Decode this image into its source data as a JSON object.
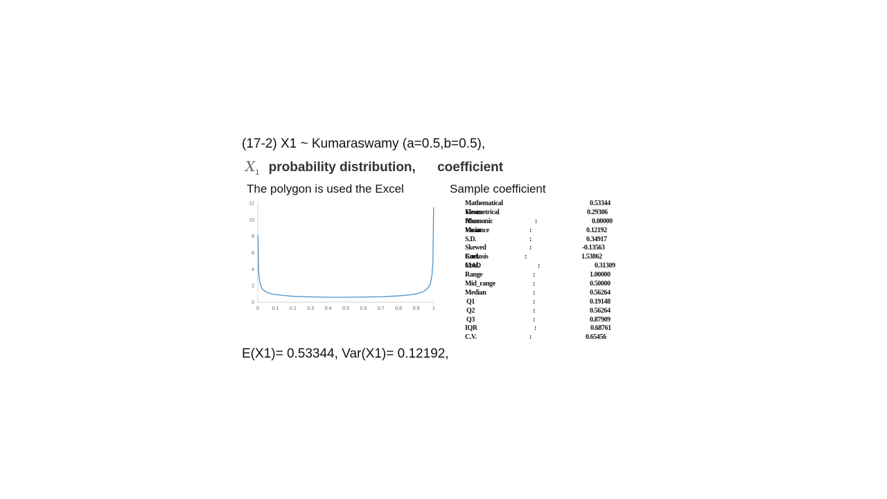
{
  "heading": "(17-2) X1 ~ Kumaraswamy (a=0.5,b=0.5),",
  "dist_line": {
    "variable": "X",
    "subscript": "1",
    "text": "probability distribution,",
    "coefficient": "coefficient"
  },
  "polygon_caption": "The polygon is used the Excel",
  "sample_caption": "Sample coefficient",
  "stats": [
    {
      "label": "Mathematical Mean:",
      "colon": "",
      "value": "0.53344"
    },
    {
      "label": "Geometrical Mean :",
      "colon": "",
      "value": "0.29306"
    },
    {
      "label": "Harmonic Mean",
      "colon": ":",
      "value": "0.00000"
    },
    {
      "label": "Variance",
      "colon": ":",
      "value": "0.12192"
    },
    {
      "label": "S.D.",
      "colon": ":",
      "value": "0.34917"
    },
    {
      "label": "Skewed Coef.",
      "colon": ":",
      "value": "-0.13563"
    },
    {
      "label": "Kurtosis Coef.",
      "colon": ":",
      "value": "1.53862"
    },
    {
      "label": "MAD",
      "colon": ":",
      "value": "0.31309"
    },
    {
      "label": "Range",
      "colon": ":",
      "value": "1.00000"
    },
    {
      "label": "Mid_range",
      "colon": ":",
      "value": "0.50000"
    },
    {
      "label": "Median",
      "colon": ":",
      "value": "0.56264"
    },
    {
      "label": "Q1",
      "colon": ":",
      "value": "0.19148"
    },
    {
      "label": "Q2",
      "colon": ":",
      "value": "0.56264"
    },
    {
      "label": "Q3",
      "colon": ":",
      "value": "0.87909"
    },
    {
      "label": "IQR",
      "colon": ":",
      "value": "0.68761"
    },
    {
      "label": "C.V.",
      "colon": ":",
      "value": "0.65456"
    }
  ],
  "result": "E(X1)= 0.53344, Var(X1)= 0.12192,",
  "chart_data": {
    "type": "line",
    "title": "",
    "xlabel": "",
    "ylabel": "",
    "xlim": [
      0,
      1
    ],
    "ylim": [
      0,
      12
    ],
    "x_ticks": [
      "0",
      "0.1",
      "0.2",
      "0.3",
      "0.4",
      "0.5",
      "0.6",
      "0.7",
      "0.8",
      "0.9",
      "1"
    ],
    "y_ticks": [
      "0",
      "2",
      "4",
      "6",
      "8",
      "10",
      "12"
    ],
    "grid": false,
    "line_color": "#4a90c8",
    "axis_color": "#d0d0d0",
    "series": [
      {
        "x": [
          0.001,
          0.005,
          0.01,
          0.02,
          0.03,
          0.05,
          0.08,
          0.1,
          0.15,
          0.2,
          0.3,
          0.4,
          0.5,
          0.6,
          0.7,
          0.8,
          0.85,
          0.9,
          0.93,
          0.95,
          0.97,
          0.98,
          0.99,
          0.995,
          0.999
        ],
        "y": [
          8.1,
          3.6,
          2.6,
          1.8,
          1.5,
          1.2,
          1.0,
          0.92,
          0.8,
          0.72,
          0.64,
          0.6,
          0.6,
          0.62,
          0.66,
          0.76,
          0.85,
          1.0,
          1.2,
          1.4,
          1.8,
          2.2,
          3.3,
          4.8,
          11.5
        ]
      }
    ]
  }
}
